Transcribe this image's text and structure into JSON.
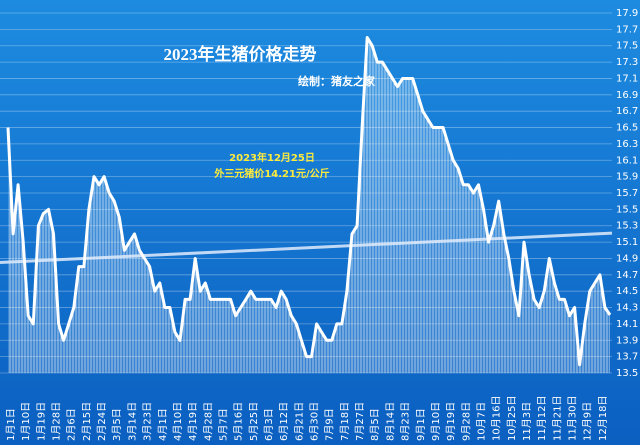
{
  "chart_data": {
    "type": "line",
    "title": "2023年生猪价格走势",
    "subtitle": "绘制：猪友之家",
    "annotations": [
      "2023年12月25日",
      "外三元猪价14.21元/公斤"
    ],
    "categories": [
      "1月1日",
      null,
      null,
      "1月10日",
      null,
      null,
      "1月19日",
      null,
      null,
      "1月28日",
      null,
      null,
      "2月6日",
      null,
      null,
      "2月15日",
      null,
      null,
      "2月24日",
      null,
      null,
      "3月5日",
      null,
      null,
      "3月14日",
      null,
      null,
      "3月23日",
      null,
      null,
      "4月1日",
      null,
      null,
      "4月10日",
      null,
      null,
      "4月19日",
      null,
      null,
      "4月28日",
      null,
      null,
      "5月7日",
      null,
      null,
      "5月16日",
      null,
      null,
      "5月25日",
      null,
      null,
      "6月3日",
      null,
      null,
      "6月12日",
      null,
      null,
      "6月21日",
      null,
      null,
      "6月30日",
      null,
      null,
      "7月9日",
      null,
      null,
      "7月18日",
      null,
      null,
      "7月27日",
      null,
      null,
      "8月5日",
      null,
      null,
      "8月14日",
      null,
      null,
      "8月23日",
      null,
      null,
      "9月1日",
      null,
      null,
      "9月10日",
      null,
      null,
      "9月19日",
      null,
      null,
      "9月28日",
      null,
      null,
      "10月7日",
      null,
      null,
      "10月16日",
      null,
      null,
      "10月25日",
      null,
      null,
      "11月3日",
      null,
      null,
      "11月12日",
      null,
      null,
      "11月21日",
      null,
      null,
      "11月30日",
      null,
      null,
      "12月9日",
      null,
      null,
      "12月18日",
      null,
      null
    ],
    "values": [
      16.5,
      15.2,
      15.8,
      15.1,
      14.2,
      14.1,
      15.3,
      15.45,
      15.5,
      15.2,
      14.1,
      13.9,
      14.1,
      14.3,
      14.8,
      14.8,
      15.5,
      15.9,
      15.8,
      15.9,
      15.7,
      15.6,
      15.4,
      15.0,
      15.1,
      15.2,
      15.0,
      14.9,
      14.8,
      14.5,
      14.6,
      14.3,
      14.3,
      14.0,
      13.9,
      14.4,
      14.4,
      14.9,
      14.5,
      14.6,
      14.4,
      14.4,
      14.4,
      14.4,
      14.4,
      14.2,
      14.3,
      14.4,
      14.5,
      14.4,
      14.4,
      14.4,
      14.4,
      14.3,
      14.5,
      14.4,
      14.2,
      14.1,
      13.9,
      13.7,
      13.7,
      14.1,
      14.0,
      13.9,
      13.9,
      14.1,
      14.1,
      14.5,
      15.2,
      15.3,
      16.5,
      17.6,
      17.5,
      17.3,
      17.3,
      17.2,
      17.1,
      17.0,
      17.1,
      17.1,
      17.1,
      16.9,
      16.7,
      16.6,
      16.5,
      16.5,
      16.5,
      16.3,
      16.1,
      16.0,
      15.8,
      15.8,
      15.7,
      15.8,
      15.5,
      15.1,
      15.3,
      15.6,
      15.2,
      14.9,
      14.5,
      14.2,
      15.1,
      14.7,
      14.4,
      14.3,
      14.5,
      14.9,
      14.6,
      14.4,
      14.4,
      14.2,
      14.3,
      13.6,
      14.1,
      14.5,
      14.6,
      14.7,
      14.3,
      14.21
    ],
    "trendline": [
      14.85,
      15.21
    ],
    "color": "#ffffff",
    "ylim": [
      13.5,
      17.9
    ],
    "yticks": [
      13.5,
      13.7,
      13.9,
      14.1,
      14.3,
      14.5,
      14.7,
      14.9,
      15.1,
      15.3,
      15.5,
      15.7,
      15.9,
      16.1,
      16.3,
      16.5,
      16.7,
      16.9,
      17.1,
      17.3,
      17.5,
      17.7,
      17.9
    ],
    "grid": true
  }
}
